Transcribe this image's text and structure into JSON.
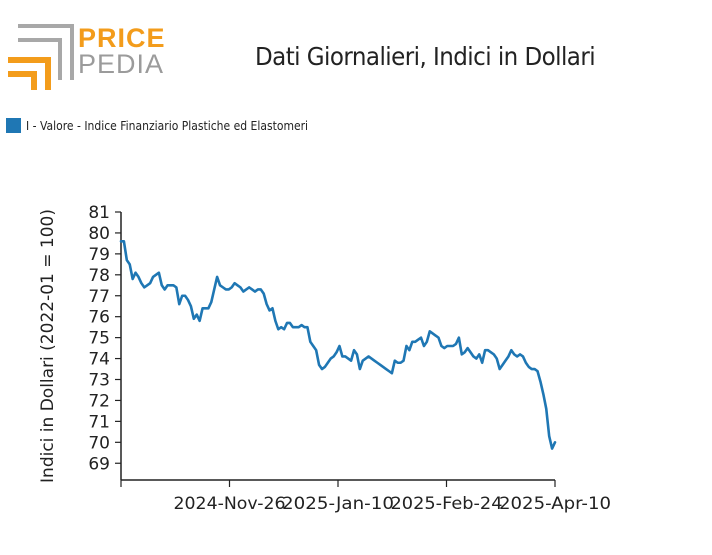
{
  "header": {
    "title": "Dati Giornalieri, Indici in Dollari"
  },
  "logo": {
    "line1": "PRICE",
    "line2": "PEDIA",
    "color_primary": "#f39c1b",
    "color_secondary": "#9b9b9b"
  },
  "chart_data": {
    "type": "line",
    "title": "Dati Giornalieri, Indici in Dollari",
    "ylabel": "Indici in Dollari (2022-01 = 100)",
    "xlabel": "",
    "ylim": [
      68.2,
      81
    ],
    "yticks": [
      69,
      70,
      71,
      72,
      73,
      74,
      75,
      76,
      77,
      78,
      79,
      80,
      81
    ],
    "xticks": [
      "2024-Nov-26",
      "2025-Jan-10",
      "2025-Feb-24",
      "2025-Apr-10"
    ],
    "legend_position": "top-left",
    "grid": false,
    "series": [
      {
        "name": "I - Valore - Indice Finanziario Plastiche ed Elastomeri",
        "color": "#1f77b4",
        "values": [
          79.6,
          79.6,
          78.7,
          78.5,
          77.8,
          78.1,
          77.9,
          77.6,
          77.4,
          77.5,
          77.6,
          77.9,
          78.0,
          78.1,
          77.5,
          77.3,
          77.5,
          77.5,
          77.5,
          77.4,
          76.6,
          77.0,
          77.0,
          76.8,
          76.5,
          75.9,
          76.1,
          75.8,
          76.4,
          76.4,
          76.4,
          76.7,
          77.3,
          77.9,
          77.5,
          77.4,
          77.3,
          77.3,
          77.4,
          77.6,
          77.5,
          77.4,
          77.2,
          77.3,
          77.4,
          77.3,
          77.2,
          77.3,
          77.3,
          77.1,
          76.6,
          76.3,
          76.4,
          75.8,
          75.4,
          75.5,
          75.4,
          75.7,
          75.7,
          75.5,
          75.5,
          75.5,
          75.6,
          75.5,
          75.5,
          74.8,
          74.6,
          74.4,
          73.7,
          73.5,
          73.6,
          73.8,
          74.0,
          74.1,
          74.3,
          74.6,
          74.1,
          74.1,
          74.0,
          73.9,
          74.4,
          74.2,
          73.5,
          73.9,
          74.0,
          74.1,
          74.0,
          73.9,
          73.8,
          73.7,
          73.6,
          73.5,
          73.4,
          73.3,
          73.9,
          73.8,
          73.8,
          73.9,
          74.6,
          74.4,
          74.8,
          74.8,
          74.9,
          75.0,
          74.6,
          74.8,
          75.3,
          75.2,
          75.1,
          75.0,
          74.6,
          74.5,
          74.6,
          74.6,
          74.6,
          74.7,
          75.0,
          74.2,
          74.3,
          74.5,
          74.3,
          74.1,
          74.0,
          74.2,
          73.8,
          74.4,
          74.4,
          74.3,
          74.2,
          74.0,
          73.5,
          73.7,
          73.9,
          74.1,
          74.4,
          74.2,
          74.1,
          74.2,
          74.1,
          73.8,
          73.6,
          73.5,
          73.5,
          73.4,
          72.9,
          72.3,
          71.6,
          70.3,
          69.7,
          70.0
        ]
      }
    ]
  }
}
